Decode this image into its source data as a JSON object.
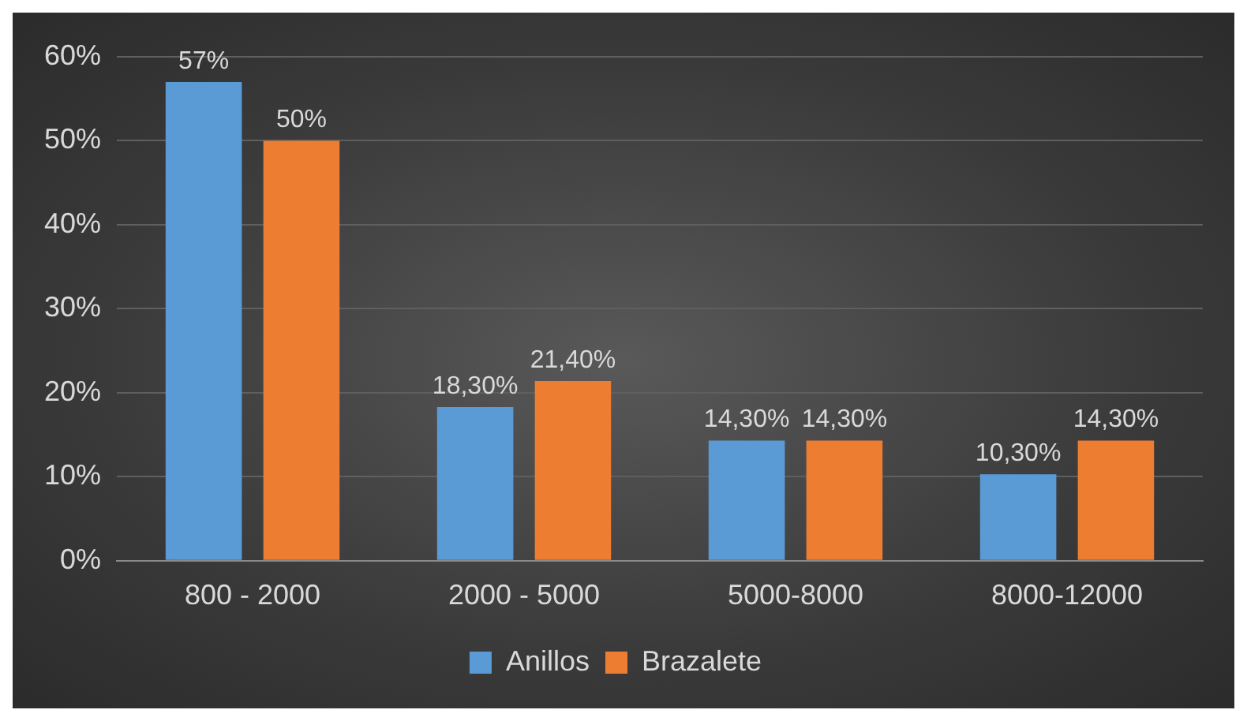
{
  "chart_data": {
    "type": "bar",
    "categories": [
      "800 - 2000",
      "2000 - 5000",
      "5000-8000",
      "8000-12000"
    ],
    "series": [
      {
        "name": "Anillos",
        "color": "#5b9bd5",
        "values": [
          57,
          18.3,
          14.3,
          10.3
        ],
        "value_labels": [
          "57%",
          "18,30%",
          "14,30%",
          "10,30%"
        ]
      },
      {
        "name": "Brazalete",
        "color": "#ed7d31",
        "values": [
          50,
          21.4,
          14.3,
          14.3
        ],
        "value_labels": [
          "50%",
          "21,40%",
          "14,30%",
          "14,30%"
        ]
      }
    ],
    "ylim": [
      0,
      60
    ],
    "yticks": [
      {
        "value": 0,
        "label": "0%"
      },
      {
        "value": 10,
        "label": "10%"
      },
      {
        "value": 20,
        "label": "20%"
      },
      {
        "value": 30,
        "label": "30%"
      },
      {
        "value": 40,
        "label": "40%"
      },
      {
        "value": 50,
        "label": "50%"
      },
      {
        "value": 60,
        "label": "60%"
      }
    ],
    "grid": "y",
    "legend": "bottom"
  }
}
